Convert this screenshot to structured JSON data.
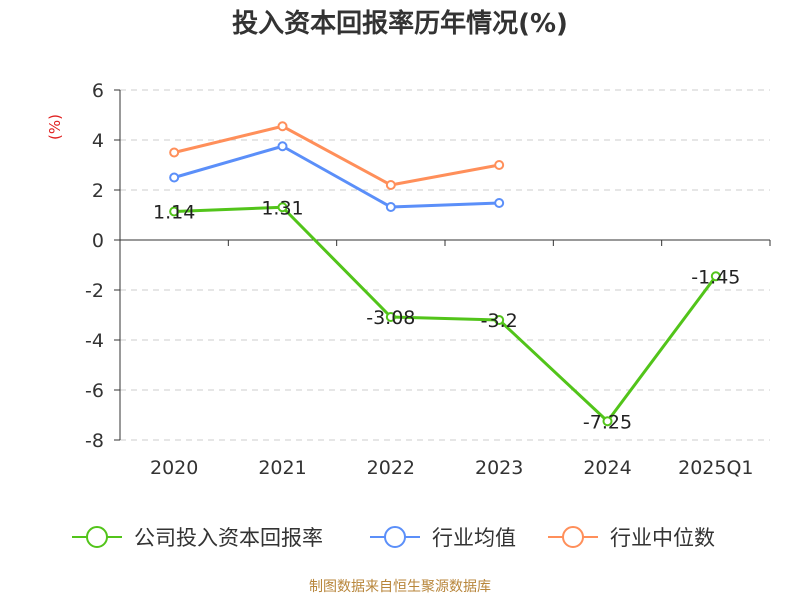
{
  "chart_data": {
    "type": "line",
    "title": "投入资本回报率历年情况(%)",
    "ylabel": "(%)",
    "xlabel": "",
    "categories": [
      "2020",
      "2021",
      "2022",
      "2023",
      "2024",
      "2025Q1"
    ],
    "ylim": [
      -8,
      6
    ],
    "yticks": [
      "6",
      "4",
      "2",
      "0",
      "-2",
      "-4",
      "-6",
      "-8"
    ],
    "grid": true,
    "legend_position": "bottom",
    "series": [
      {
        "name": "公司投入资本回报率",
        "color": "#52c41a",
        "values": [
          1.14,
          1.31,
          -3.08,
          -3.2,
          -7.25,
          -1.45
        ],
        "labels": [
          "1.14",
          "1.31",
          "-3.08",
          "-3.2",
          "-7.25",
          "-1.45"
        ]
      },
      {
        "name": "行业均值",
        "color": "#5b8ff9",
        "values": [
          2.5,
          3.75,
          1.32,
          1.48,
          null,
          null
        ]
      },
      {
        "name": "行业中位数",
        "color": "#ff8f5a",
        "values": [
          3.5,
          4.55,
          2.2,
          3.0,
          null,
          null
        ]
      }
    ]
  },
  "footer": {
    "source": "制图数据来自恒生聚源数据库"
  }
}
